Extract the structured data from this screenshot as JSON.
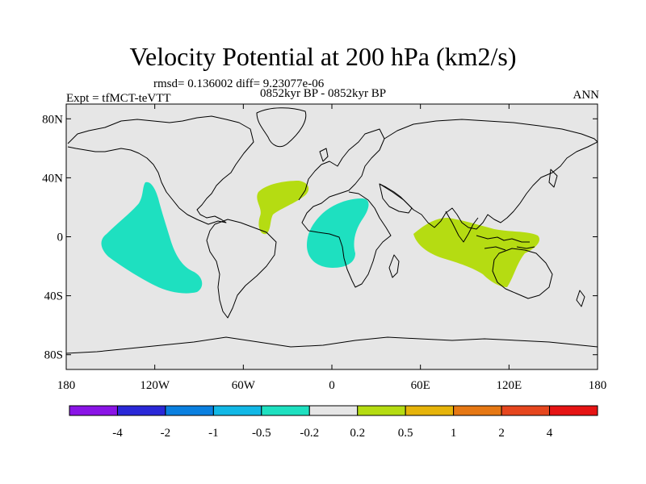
{
  "title": "Velocity Potential at 200 hPa (km2/s)",
  "stats": "rmsd= 0.136002 diff= 9.23077e-06",
  "period": "0852kyr BP - 0852kyr BP",
  "experiment": "Expt = tfMCT-teVTT",
  "season": "ANN",
  "map": {
    "lat_labels": [
      "80N",
      "40N",
      "0",
      "40S",
      "80S"
    ],
    "lat_values": [
      80,
      40,
      0,
      -40,
      -80
    ],
    "lon_labels": [
      "180",
      "120W",
      "60W",
      "0",
      "60E",
      "120E",
      "180"
    ],
    "lon_values": [
      -180,
      -120,
      -60,
      0,
      60,
      120,
      180
    ],
    "background_color": "#e6e6e6",
    "anomalies": [
      {
        "name": "east-pacific-negative",
        "category": "-0.5 to -0.2",
        "color": "#1ee0c0"
      },
      {
        "name": "west-africa-atlantic-negative",
        "category": "-0.5 to -0.2",
        "color": "#1ee0c0"
      },
      {
        "name": "north-atlantic-positive",
        "category": "0.2 to 0.5",
        "color": "#b5dc12"
      },
      {
        "name": "indian-ocean-maritime-positive",
        "category": "0.2 to 0.5",
        "color": "#b5dc12"
      }
    ]
  },
  "colorbar": {
    "labels": [
      "-4",
      "-2",
      "-1",
      "-0.5",
      "-0.2",
      "0.2",
      "0.5",
      "1",
      "2",
      "4"
    ],
    "colors": [
      "#8a14e6",
      "#2a28d8",
      "#0a80e0",
      "#12b8e6",
      "#1ee0c0",
      "#e6e6e6",
      "#b5dc12",
      "#e6b40a",
      "#e67814",
      "#e6461e",
      "#e61414"
    ]
  }
}
